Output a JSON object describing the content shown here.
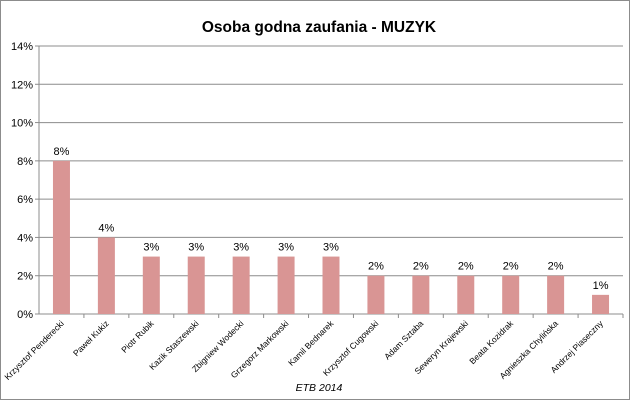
{
  "chart_data": {
    "type": "bar",
    "title": "Osoba godna zaufania - MUZYK",
    "source": "ETB 2014",
    "categories": [
      "Krzysztof Penderecki",
      "Paweł Kukiz",
      "Piotr Rubik",
      "Kazik Staszewski",
      "Zbigniew Wodecki",
      "Grzegorz Markowski",
      "Kamil Bednarek",
      "Krzysztof Cugowski",
      "Adam Sztaba",
      "Seweryn Krajewski",
      "Beata Kozidrak",
      "Agnieszka Chylińska",
      "Andrzej Piaseczny"
    ],
    "values": [
      8,
      4,
      3,
      3,
      3,
      3,
      3,
      2,
      2,
      2,
      2,
      2,
      1
    ],
    "data_labels": [
      "8%",
      "4%",
      "3%",
      "3%",
      "3%",
      "3%",
      "3%",
      "2%",
      "2%",
      "2%",
      "2%",
      "2%",
      "1%"
    ],
    "yticks": [
      "0%",
      "2%",
      "4%",
      "6%",
      "8%",
      "10%",
      "12%",
      "14%"
    ],
    "ylim": [
      0,
      14
    ],
    "grid": true,
    "legend": "none",
    "bar_color": "#d99594",
    "grid_color": "#8c8c8c"
  }
}
